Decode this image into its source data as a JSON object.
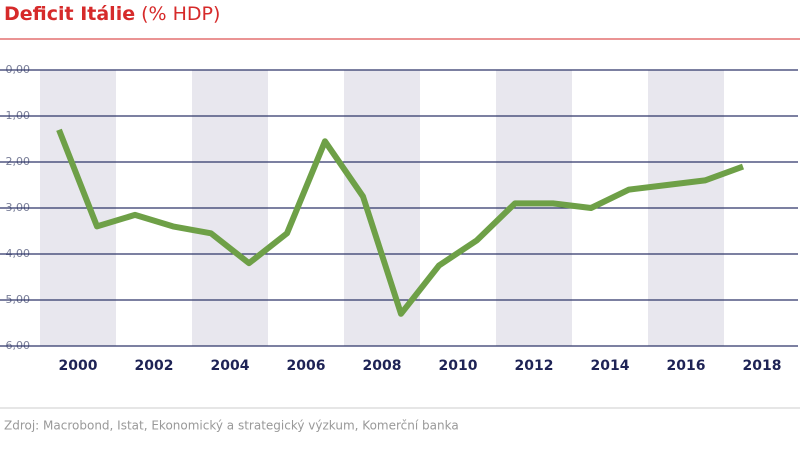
{
  "chart_data": {
    "type": "line",
    "title": "Deficit Itálie",
    "subtitle": "(% HDP)",
    "categories": [
      "2000",
      null,
      "2002",
      null,
      "2004",
      null,
      "2006",
      null,
      "2008",
      null,
      "2010",
      null,
      "2012",
      null,
      "2014",
      null,
      "2016",
      null,
      "2018"
    ],
    "series": [
      {
        "name": "Deficit Itálie",
        "color": "#6ea047",
        "values": [
          -1.3,
          -3.4,
          -3.15,
          -3.4,
          -3.55,
          -4.2,
          -3.55,
          -1.55,
          -2.75,
          -5.3,
          -4.25,
          -3.7,
          -2.9,
          -2.9,
          -3.0,
          -2.6,
          -2.5,
          -2.4,
          -2.1
        ]
      }
    ],
    "ylim": [
      -6,
      0
    ],
    "yticks": [
      {
        "value": 0,
        "label": "0,00"
      },
      {
        "value": -1,
        "label": "-1,00"
      },
      {
        "value": -2,
        "label": "-2,00"
      },
      {
        "value": -3,
        "label": "-3,00"
      },
      {
        "value": -4,
        "label": "-4,00"
      },
      {
        "value": -5,
        "label": "-5,00"
      },
      {
        "value": -6,
        "label": "-6,00"
      }
    ],
    "grid": true,
    "source": "Zdroj: Macrobond, Istat, Ekonomický a strategický výzkum, Komerční banka"
  }
}
